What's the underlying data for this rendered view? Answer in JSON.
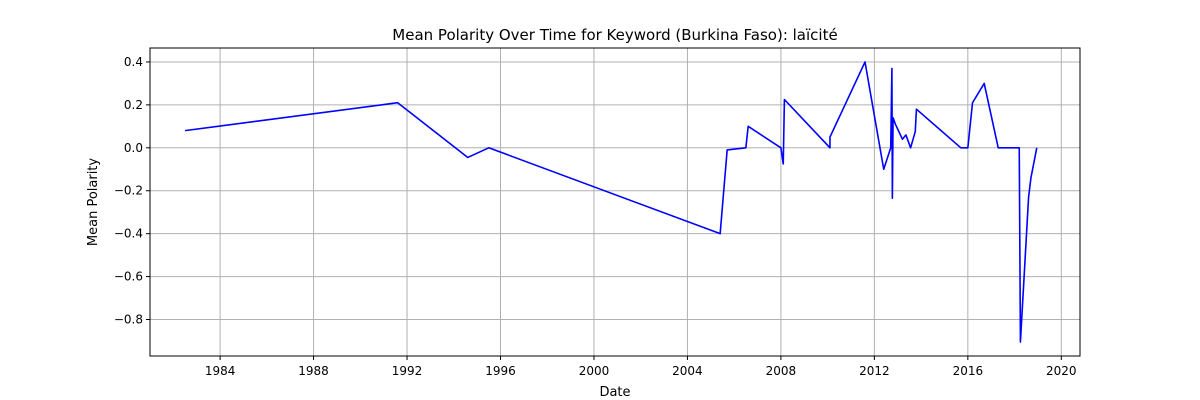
{
  "chart_data": {
    "type": "line",
    "title": "Mean Polarity Over Time for Keyword (Burkina Faso): laïcité",
    "xlabel": "Date",
    "ylabel": "Mean Polarity",
    "xlim": [
      1981.0,
      2020.8
    ],
    "ylim": [
      -0.97,
      0.465
    ],
    "x_ticks": [
      1984,
      1988,
      1992,
      1996,
      2000,
      2004,
      2008,
      2012,
      2016,
      2020
    ],
    "x_tick_labels": [
      "1984",
      "1988",
      "1992",
      "1996",
      "2000",
      "2004",
      "2008",
      "2012",
      "2016",
      "2020"
    ],
    "y_ticks": [
      -0.8,
      -0.6,
      -0.4,
      -0.2,
      0.0,
      0.2,
      0.4
    ],
    "y_tick_labels": [
      "−0.8",
      "−0.6",
      "−0.4",
      "−0.2",
      "0.0",
      "0.2",
      "0.4"
    ],
    "grid": true,
    "series": [
      {
        "color": "#0000ff",
        "x": [
          1982.5,
          1991.6,
          1994.6,
          1995.5,
          2005.4,
          2005.7,
          2006.5,
          2006.6,
          2008.0,
          2008.1,
          2008.15,
          2010.1,
          2010.1,
          2011.6,
          2012.4,
          2012.7,
          2012.75,
          2012.77,
          2012.8,
          2012.9,
          2013.2,
          2013.35,
          2013.55,
          2013.75,
          2013.8,
          2015.7,
          2016.0,
          2016.2,
          2016.7,
          2017.3,
          2018.2,
          2018.25,
          2018.6,
          2018.7,
          2018.95
        ],
        "y": [
          0.08,
          0.21,
          -0.045,
          0.0,
          -0.4,
          -0.01,
          0.0,
          0.1,
          0.0,
          -0.075,
          0.225,
          0.0,
          0.05,
          0.4,
          -0.1,
          0.0,
          0.37,
          -0.235,
          0.14,
          0.11,
          0.04,
          0.06,
          0.0,
          0.075,
          0.18,
          0.0,
          0.0,
          0.21,
          0.3,
          0.0,
          0.0,
          -0.905,
          -0.23,
          -0.14,
          0.0
        ]
      }
    ]
  }
}
